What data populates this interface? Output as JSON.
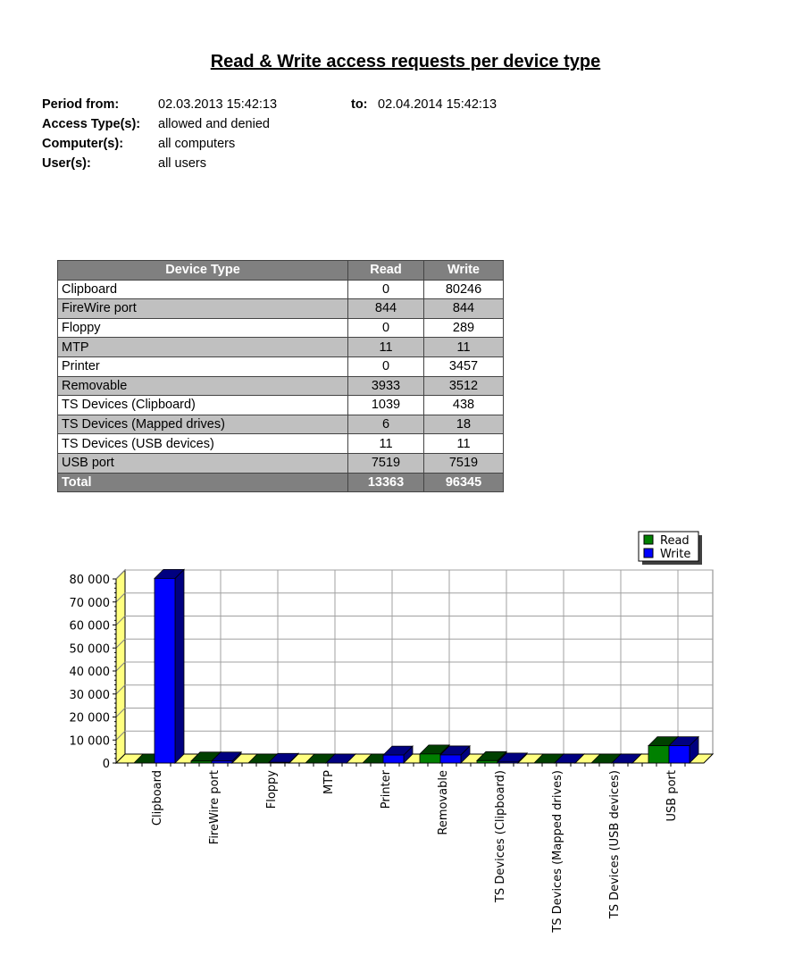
{
  "report": {
    "title": "Read & Write access requests per device type",
    "meta": {
      "period_from_label": "Period from:",
      "period_from": "02.03.2013 15:42:13",
      "to_label": "to:",
      "period_to": "02.04.2014 15:42:13",
      "access_types_label": "Access Type(s):",
      "access_types": "allowed and denied",
      "computers_label": "Computer(s):",
      "computers": "all computers",
      "users_label": "User(s):",
      "users": "all users"
    }
  },
  "table": {
    "headers": [
      "Device Type",
      "Read",
      "Write"
    ],
    "rows": [
      [
        "Clipboard",
        "0",
        "80246"
      ],
      [
        "FireWire port",
        "844",
        "844"
      ],
      [
        "Floppy",
        "0",
        "289"
      ],
      [
        "MTP",
        "11",
        "11"
      ],
      [
        "Printer",
        "0",
        "3457"
      ],
      [
        "Removable",
        "3933",
        "3512"
      ],
      [
        "TS Devices (Clipboard)",
        "1039",
        "438"
      ],
      [
        "TS Devices (Mapped drives)",
        "6",
        "18"
      ],
      [
        "TS Devices (USB devices)",
        "11",
        "11"
      ],
      [
        "USB port",
        "7519",
        "7519"
      ]
    ],
    "total": [
      "Total",
      "13363",
      "96345"
    ]
  },
  "chart_data": {
    "type": "bar",
    "style": "3d-clustered",
    "categories": [
      "Clipboard",
      "FireWire port",
      "Floppy",
      "MTP",
      "Printer",
      "Removable",
      "TS Devices (Clipboard)",
      "TS Devices (Mapped drives)",
      "TS Devices (USB devices)",
      "USB port"
    ],
    "series": [
      {
        "name": "Read",
        "color": "#008000",
        "values": [
          0,
          844,
          0,
          11,
          0,
          3933,
          1039,
          6,
          11,
          7519
        ]
      },
      {
        "name": "Write",
        "color": "#0000ff",
        "values": [
          80246,
          844,
          289,
          11,
          3457,
          3512,
          438,
          18,
          11,
          7519
        ]
      }
    ],
    "ylim": [
      0,
      80000
    ],
    "yticks": [
      "0",
      "10 000",
      "20 000",
      "30 000",
      "40 000",
      "50 000",
      "60 000",
      "70 000",
      "80 000"
    ],
    "grid": true,
    "legend": "top-right",
    "floor_color": "#ffff80"
  }
}
